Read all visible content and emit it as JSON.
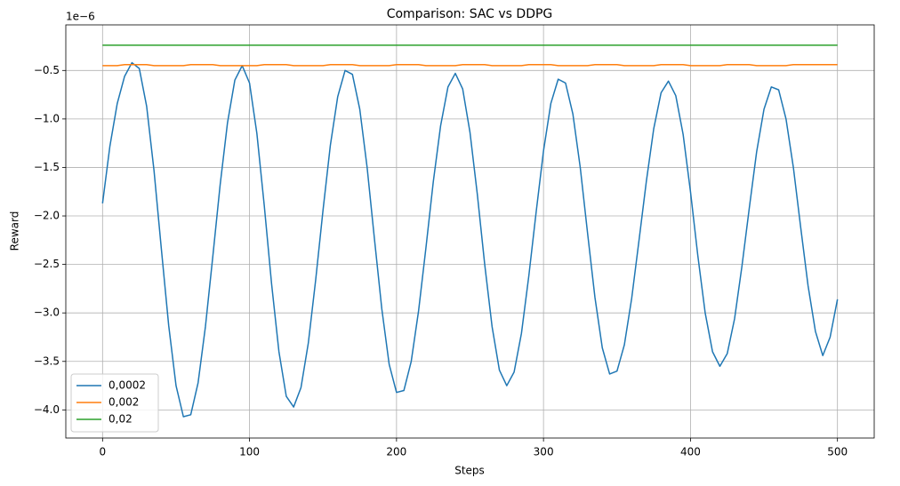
{
  "chart_data": {
    "type": "line",
    "title": "Comparison: SAC vs DDPG",
    "x_label": "Steps",
    "y_label": "Reward",
    "y_offset_label": "1e−6",
    "x": [
      0,
      5,
      10,
      15,
      20,
      25,
      30,
      35,
      40,
      45,
      50,
      55,
      60,
      65,
      70,
      75,
      80,
      85,
      90,
      95,
      100,
      105,
      110,
      115,
      120,
      125,
      130,
      135,
      140,
      145,
      150,
      155,
      160,
      165,
      170,
      175,
      180,
      185,
      190,
      195,
      200,
      205,
      210,
      215,
      220,
      225,
      230,
      235,
      240,
      245,
      250,
      255,
      260,
      265,
      270,
      275,
      280,
      285,
      290,
      295,
      300,
      305,
      310,
      315,
      320,
      325,
      330,
      335,
      340,
      345,
      350,
      355,
      360,
      365,
      370,
      375,
      380,
      385,
      390,
      395,
      400,
      405,
      410,
      415,
      420,
      425,
      430,
      435,
      440,
      445,
      450,
      455,
      460,
      465,
      470,
      475,
      480,
      485,
      490,
      495,
      500
    ],
    "series": [
      {
        "name": "0,0002",
        "color": "#1f77b4",
        "values": [
          -1.87,
          -1.28,
          -0.84,
          -0.56,
          -0.42,
          -0.48,
          -0.87,
          -1.53,
          -2.34,
          -3.13,
          -3.75,
          -4.07,
          -4.05,
          -3.72,
          -3.14,
          -2.42,
          -1.68,
          -1.04,
          -0.6,
          -0.45,
          -0.63,
          -1.15,
          -1.89,
          -2.7,
          -3.4,
          -3.86,
          -3.97,
          -3.77,
          -3.31,
          -2.66,
          -1.94,
          -1.27,
          -0.77,
          -0.5,
          -0.54,
          -0.9,
          -1.5,
          -2.24,
          -2.96,
          -3.53,
          -3.82,
          -3.8,
          -3.5,
          -2.98,
          -2.33,
          -1.65,
          -1.07,
          -0.67,
          -0.53,
          -0.69,
          -1.14,
          -1.78,
          -2.5,
          -3.14,
          -3.59,
          -3.75,
          -3.61,
          -3.21,
          -2.62,
          -1.96,
          -1.33,
          -0.84,
          -0.59,
          -0.63,
          -0.95,
          -1.5,
          -2.18,
          -2.84,
          -3.36,
          -3.63,
          -3.6,
          -3.33,
          -2.85,
          -2.25,
          -1.64,
          -1.1,
          -0.73,
          -0.61,
          -0.76,
          -1.16,
          -1.75,
          -2.41,
          -3.0,
          -3.4,
          -3.55,
          -3.42,
          -3.06,
          -2.52,
          -1.92,
          -1.34,
          -0.9,
          -0.67,
          -0.7,
          -1.0,
          -1.5,
          -2.12,
          -2.72,
          -3.19,
          -3.44,
          -3.25,
          -2.86
        ]
      },
      {
        "name": "0,002",
        "color": "#ff7f0e",
        "values": [
          -0.45,
          -0.45,
          -0.45,
          -0.44,
          -0.44,
          -0.44,
          -0.44,
          -0.45,
          -0.45,
          -0.45,
          -0.45,
          -0.45,
          -0.44,
          -0.44,
          -0.44,
          -0.44,
          -0.45,
          -0.45,
          -0.45,
          -0.45,
          -0.45,
          -0.45,
          -0.44,
          -0.44,
          -0.44,
          -0.44,
          -0.45,
          -0.45,
          -0.45,
          -0.45,
          -0.45,
          -0.44,
          -0.44,
          -0.44,
          -0.44,
          -0.45,
          -0.45,
          -0.45,
          -0.45,
          -0.45,
          -0.44,
          -0.44,
          -0.44,
          -0.44,
          -0.45,
          -0.45,
          -0.45,
          -0.45,
          -0.45,
          -0.44,
          -0.44,
          -0.44,
          -0.44,
          -0.45,
          -0.45,
          -0.45,
          -0.45,
          -0.45,
          -0.44,
          -0.44,
          -0.44,
          -0.44,
          -0.45,
          -0.45,
          -0.45,
          -0.45,
          -0.45,
          -0.44,
          -0.44,
          -0.44,
          -0.44,
          -0.45,
          -0.45,
          -0.45,
          -0.45,
          -0.45,
          -0.44,
          -0.44,
          -0.44,
          -0.44,
          -0.45,
          -0.45,
          -0.45,
          -0.45,
          -0.45,
          -0.44,
          -0.44,
          -0.44,
          -0.44,
          -0.45,
          -0.45,
          -0.45,
          -0.45,
          -0.45,
          -0.44,
          -0.44,
          -0.44,
          -0.44,
          -0.44,
          -0.44,
          -0.44
        ]
      },
      {
        "name": "0,02",
        "color": "#2ca02c",
        "values": [
          -0.24,
          -0.24,
          -0.24,
          -0.24,
          -0.24,
          -0.24,
          -0.24,
          -0.24,
          -0.24,
          -0.24,
          -0.24,
          -0.24,
          -0.24,
          -0.24,
          -0.24,
          -0.24,
          -0.24,
          -0.24,
          -0.24,
          -0.24,
          -0.24,
          -0.24,
          -0.24,
          -0.24,
          -0.24,
          -0.24,
          -0.24,
          -0.24,
          -0.24,
          -0.24,
          -0.24,
          -0.24,
          -0.24,
          -0.24,
          -0.24,
          -0.24,
          -0.24,
          -0.24,
          -0.24,
          -0.24,
          -0.24,
          -0.24,
          -0.24,
          -0.24,
          -0.24,
          -0.24,
          -0.24,
          -0.24,
          -0.24,
          -0.24,
          -0.24,
          -0.24,
          -0.24,
          -0.24,
          -0.24,
          -0.24,
          -0.24,
          -0.24,
          -0.24,
          -0.24,
          -0.24,
          -0.24,
          -0.24,
          -0.24,
          -0.24,
          -0.24,
          -0.24,
          -0.24,
          -0.24,
          -0.24,
          -0.24,
          -0.24,
          -0.24,
          -0.24,
          -0.24,
          -0.24,
          -0.24,
          -0.24,
          -0.24,
          -0.24,
          -0.24,
          -0.24,
          -0.24,
          -0.24,
          -0.24,
          -0.24,
          -0.24,
          -0.24,
          -0.24,
          -0.24,
          -0.24,
          -0.24,
          -0.24,
          -0.24,
          -0.24,
          -0.24,
          -0.24,
          -0.24,
          -0.24,
          -0.24,
          -0.24
        ]
      }
    ],
    "xlim": [
      -25,
      525
    ],
    "xticks": [
      0,
      100,
      200,
      300,
      400,
      500
    ],
    "ylim": [
      -4.29,
      -0.03
    ],
    "yticks": [
      {
        "value": -4.0,
        "label": "−4.0"
      },
      {
        "value": -3.5,
        "label": "−3.5"
      },
      {
        "value": -3.0,
        "label": "−3.0"
      },
      {
        "value": -2.5,
        "label": "−2.5"
      },
      {
        "value": -2.0,
        "label": "−2.0"
      },
      {
        "value": -1.5,
        "label": "−1.5"
      },
      {
        "value": -1.0,
        "label": "−1.0"
      },
      {
        "value": -0.5,
        "label": "−0.5"
      }
    ],
    "grid": true,
    "legend": "lower left"
  }
}
